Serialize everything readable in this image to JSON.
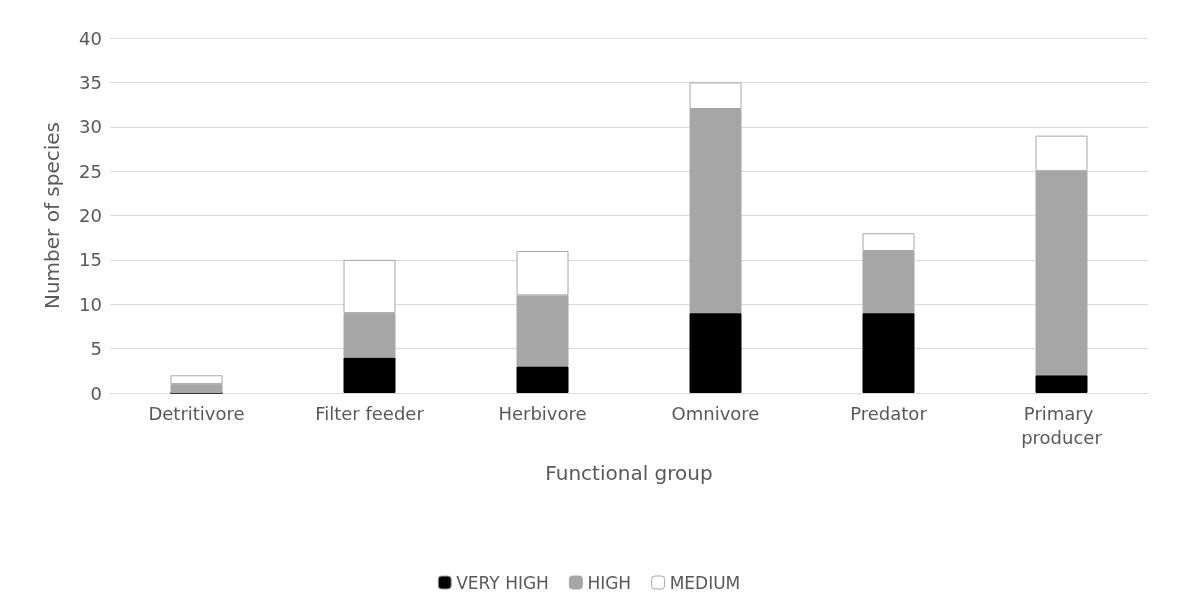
{
  "chart_data": {
    "type": "bar",
    "stacked": true,
    "xlabel": "Functional group",
    "ylabel": "Number of species",
    "categories": [
      "Detritivore",
      "Filter feeder",
      "Herbivore",
      "Omnivore",
      "Predator",
      "Primary producer"
    ],
    "series": [
      {
        "name": "VERY HIGH",
        "color": "#000000",
        "values": [
          0,
          4,
          3,
          9,
          9,
          2
        ]
      },
      {
        "name": "HIGH",
        "color": "#a6a6a6",
        "values": [
          1,
          5,
          8,
          23,
          7,
          23
        ]
      },
      {
        "name": "MEDIUM",
        "color": "#ffffff",
        "values": [
          1,
          6,
          5,
          3,
          2,
          4
        ]
      }
    ],
    "ylim": [
      0,
      40
    ],
    "yticks": [
      0,
      5,
      10,
      15,
      20,
      25,
      30,
      35,
      40
    ],
    "grid": "y",
    "legend": "bottom"
  }
}
